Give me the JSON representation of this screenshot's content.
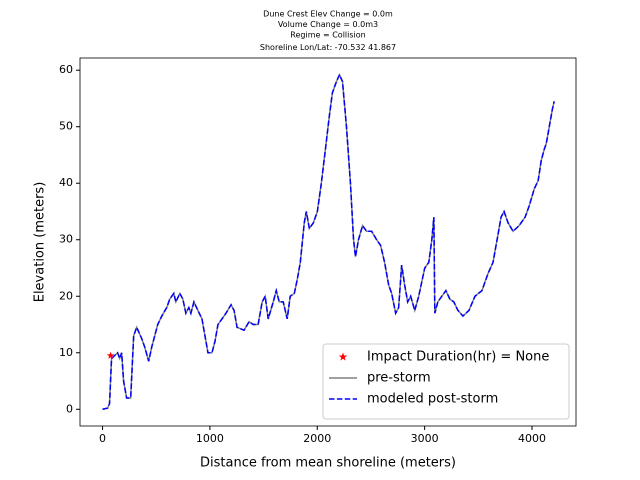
{
  "chart_data": {
    "type": "line",
    "title_lines": [
      "Dune Crest Elev Change = 0.0m",
      "Volume Change = 0.0m3",
      "Regime = Collision",
      "Shoreline Lon/Lat: -70.532 41.867"
    ],
    "xlabel": "Distance from mean shoreline (meters)",
    "ylabel": "Elevation (meters)",
    "x": [
      0,
      47,
      65,
      84,
      140,
      160,
      178,
      196,
      224,
      262,
      290,
      318,
      365,
      393,
      430,
      458,
      486,
      514,
      552,
      598,
      626,
      664,
      683,
      720,
      748,
      776,
      804,
      823,
      851,
      888,
      926,
      954,
      982,
      1019,
      1047,
      1075,
      1113,
      1150,
      1197,
      1225,
      1253,
      1318,
      1365,
      1403,
      1449,
      1487,
      1515,
      1543,
      1590,
      1618,
      1646,
      1683,
      1720,
      1748,
      1786,
      1814,
      1842,
      1879,
      1898,
      1926,
      1964,
      2001,
      2038,
      2076,
      2113,
      2141,
      2179,
      2207,
      2235,
      2272,
      2309,
      2338,
      2356,
      2384,
      2422,
      2459,
      2506,
      2553,
      2590,
      2627,
      2665,
      2693,
      2730,
      2758,
      2786,
      2814,
      2842,
      2870,
      2908,
      2945,
      3001,
      3039,
      3067,
      3086,
      3095,
      3123,
      3160,
      3198,
      3235,
      3272,
      3310,
      3357,
      3413,
      3469,
      3534,
      3590,
      3637,
      3675,
      3712,
      3740,
      3777,
      3824,
      3880,
      3936,
      3974,
      4021,
      4058,
      4086,
      4114,
      4133,
      4161,
      4189,
      4207
    ],
    "series": [
      {
        "name": "pre-storm",
        "color": "#808080",
        "dash": false,
        "values": [
          0,
          0.2,
          1,
          9,
          10,
          9,
          10,
          5,
          2,
          2,
          13,
          14.5,
          12.5,
          11,
          8.5,
          11,
          13,
          15,
          16.5,
          18,
          19.5,
          20.5,
          19,
          20.5,
          19.5,
          17,
          18,
          17,
          19,
          17.5,
          16,
          13,
          10,
          10,
          12,
          15,
          16,
          17,
          18.5,
          17.5,
          14.5,
          14,
          15.5,
          15,
          15,
          19,
          20,
          16,
          19,
          21,
          19,
          19,
          16,
          20,
          20.5,
          23,
          26,
          33,
          35,
          32,
          33,
          35,
          40,
          46,
          52,
          56,
          58,
          59.2,
          58,
          50,
          40,
          30,
          27,
          30,
          32.5,
          31.5,
          31.5,
          30,
          29,
          26,
          22,
          20.5,
          17,
          18,
          25.5,
          22,
          19,
          20,
          17.5,
          20,
          25,
          26,
          30,
          34,
          17,
          19,
          20,
          21,
          19.5,
          19,
          17.5,
          16.5,
          17.5,
          20,
          21,
          24,
          26,
          30,
          34,
          35,
          33,
          31.5,
          32.5,
          34,
          36,
          39,
          40.5,
          44,
          46,
          47,
          50,
          53,
          54.5
        ]
      },
      {
        "name": "modeled post-storm",
        "color": "#0000ff",
        "dash": true,
        "values": [
          0,
          0.2,
          1,
          9,
          10,
          9,
          10,
          5,
          2,
          2,
          13,
          14.5,
          12.5,
          11,
          8.5,
          11,
          13,
          15,
          16.5,
          18,
          19.5,
          20.5,
          19,
          20.5,
          19.5,
          17,
          18,
          17,
          19,
          17.5,
          16,
          13,
          10,
          10,
          12,
          15,
          16,
          17,
          18.5,
          17.5,
          14.5,
          14,
          15.5,
          15,
          15,
          19,
          20,
          16,
          19,
          21,
          19,
          19,
          16,
          20,
          20.5,
          23,
          26,
          33,
          35,
          32,
          33,
          35,
          40,
          46,
          52,
          56,
          58,
          59.2,
          58,
          50,
          40,
          30,
          27,
          30,
          32.5,
          31.5,
          31.5,
          30,
          29,
          26,
          22,
          20.5,
          17,
          18,
          25.5,
          22,
          19,
          20,
          17.5,
          20,
          25,
          26,
          30,
          34,
          17,
          19,
          20,
          21,
          19.5,
          19,
          17.5,
          16.5,
          17.5,
          20,
          21,
          24,
          26,
          30,
          34,
          35,
          33,
          31.5,
          32.5,
          34,
          36,
          39,
          40.5,
          44,
          46,
          47,
          50,
          53,
          54.5
        ]
      }
    ],
    "marker": {
      "name": "Impact Duration(hr) = None",
      "color": "#ff0000",
      "x": 75,
      "y": 9.5
    },
    "xlim": [
      -210,
      4410
    ],
    "ylim": [
      -2.96,
      62.16
    ],
    "xticks": [
      0,
      1000,
      2000,
      3000,
      4000
    ],
    "yticks": [
      0,
      10,
      20,
      30,
      40,
      50,
      60
    ],
    "legend": "lower right"
  }
}
